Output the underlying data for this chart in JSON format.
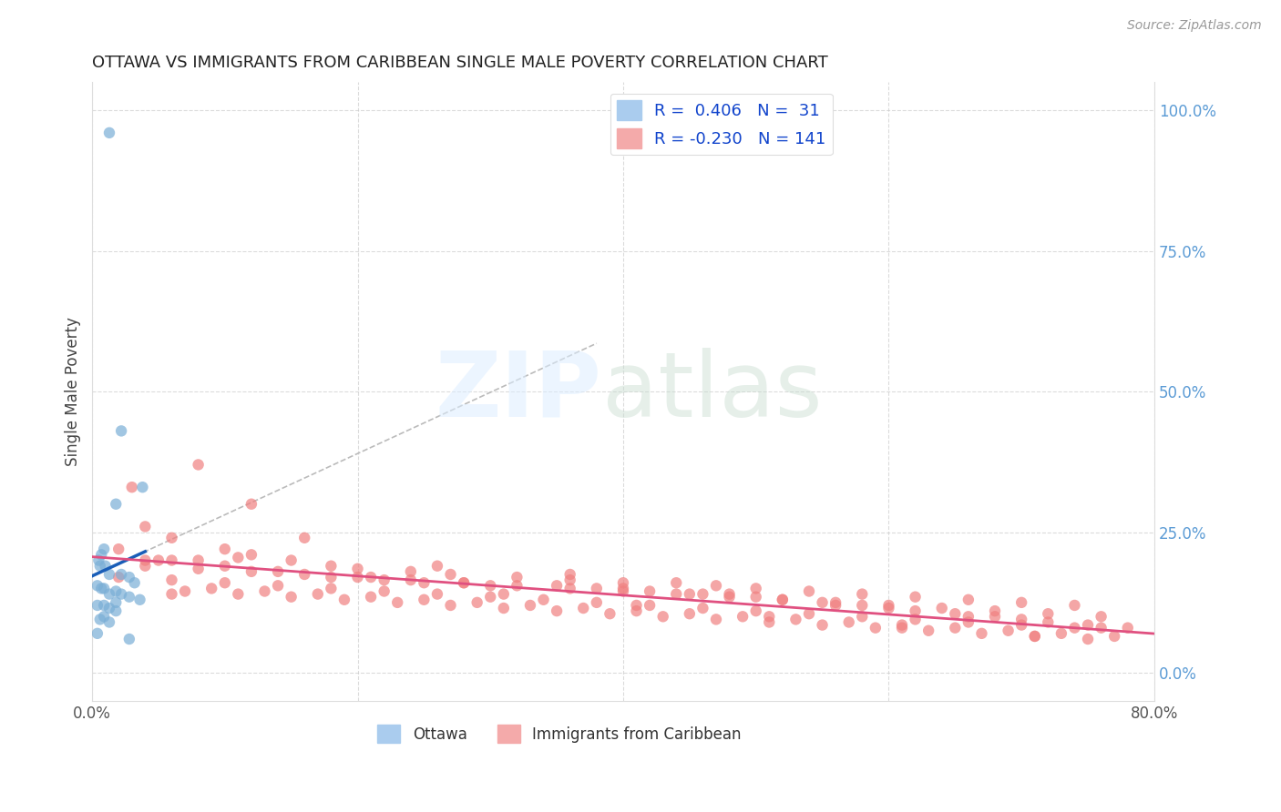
{
  "title": "OTTAWA VS IMMIGRANTS FROM CARIBBEAN SINGLE MALE POVERTY CORRELATION CHART",
  "source": "Source: ZipAtlas.com",
  "ylabel": "Single Male Poverty",
  "xlim": [
    0.0,
    0.8
  ],
  "ylim": [
    -0.05,
    1.05
  ],
  "background_color": "#ffffff",
  "grid_color": "#cccccc",
  "series1_color": "#7aaed6",
  "series2_color": "#f08080",
  "trendline1_color": "#1a5eb8",
  "trendline2_color": "#e05080",
  "dash_color": "#bbbbbb",
  "ottawa_x": [
    0.013,
    0.022,
    0.038,
    0.018,
    0.009,
    0.007,
    0.005,
    0.006,
    0.01,
    0.013,
    0.022,
    0.028,
    0.032,
    0.004,
    0.007,
    0.009,
    0.018,
    0.013,
    0.022,
    0.028,
    0.036,
    0.018,
    0.004,
    0.009,
    0.013,
    0.018,
    0.009,
    0.006,
    0.013,
    0.004,
    0.028
  ],
  "ottawa_y": [
    0.96,
    0.43,
    0.33,
    0.3,
    0.22,
    0.21,
    0.2,
    0.19,
    0.19,
    0.175,
    0.175,
    0.17,
    0.16,
    0.155,
    0.15,
    0.15,
    0.145,
    0.14,
    0.14,
    0.135,
    0.13,
    0.125,
    0.12,
    0.12,
    0.115,
    0.11,
    0.1,
    0.095,
    0.09,
    0.07,
    0.06
  ],
  "carib_x": [
    0.08,
    0.12,
    0.02,
    0.04,
    0.06,
    0.08,
    0.1,
    0.14,
    0.18,
    0.22,
    0.25,
    0.28,
    0.3,
    0.35,
    0.38,
    0.4,
    0.42,
    0.45,
    0.48,
    0.5,
    0.52,
    0.55,
    0.58,
    0.6,
    0.62,
    0.65,
    0.68,
    0.7,
    0.72,
    0.75,
    0.78,
    0.04,
    0.06,
    0.1,
    0.12,
    0.15,
    0.18,
    0.2,
    0.24,
    0.27,
    0.32,
    0.36,
    0.4,
    0.44,
    0.47,
    0.5,
    0.54,
    0.58,
    0.62,
    0.66,
    0.7,
    0.74,
    0.04,
    0.08,
    0.12,
    0.16,
    0.2,
    0.24,
    0.28,
    0.32,
    0.36,
    0.4,
    0.44,
    0.48,
    0.52,
    0.56,
    0.6,
    0.64,
    0.68,
    0.72,
    0.76,
    0.02,
    0.06,
    0.1,
    0.14,
    0.18,
    0.22,
    0.26,
    0.3,
    0.34,
    0.38,
    0.42,
    0.46,
    0.5,
    0.54,
    0.58,
    0.62,
    0.66,
    0.7,
    0.74,
    0.03,
    0.07,
    0.11,
    0.15,
    0.19,
    0.23,
    0.27,
    0.31,
    0.35,
    0.39,
    0.43,
    0.47,
    0.51,
    0.55,
    0.59,
    0.63,
    0.67,
    0.71,
    0.75,
    0.05,
    0.09,
    0.13,
    0.17,
    0.21,
    0.25,
    0.29,
    0.33,
    0.37,
    0.41,
    0.45,
    0.49,
    0.53,
    0.57,
    0.61,
    0.65,
    0.69,
    0.73,
    0.77,
    0.06,
    0.16,
    0.26,
    0.36,
    0.46,
    0.56,
    0.66,
    0.76,
    0.11,
    0.21,
    0.31,
    0.41,
    0.51,
    0.61,
    0.71
  ],
  "carib_y": [
    0.37,
    0.3,
    0.22,
    0.2,
    0.2,
    0.2,
    0.19,
    0.18,
    0.17,
    0.165,
    0.16,
    0.16,
    0.155,
    0.155,
    0.15,
    0.15,
    0.145,
    0.14,
    0.14,
    0.135,
    0.13,
    0.125,
    0.12,
    0.115,
    0.11,
    0.105,
    0.1,
    0.095,
    0.09,
    0.085,
    0.08,
    0.26,
    0.24,
    0.22,
    0.21,
    0.2,
    0.19,
    0.185,
    0.18,
    0.175,
    0.17,
    0.165,
    0.16,
    0.16,
    0.155,
    0.15,
    0.145,
    0.14,
    0.135,
    0.13,
    0.125,
    0.12,
    0.19,
    0.185,
    0.18,
    0.175,
    0.17,
    0.165,
    0.16,
    0.155,
    0.15,
    0.145,
    0.14,
    0.135,
    0.13,
    0.125,
    0.12,
    0.115,
    0.11,
    0.105,
    0.1,
    0.17,
    0.165,
    0.16,
    0.155,
    0.15,
    0.145,
    0.14,
    0.135,
    0.13,
    0.125,
    0.12,
    0.115,
    0.11,
    0.105,
    0.1,
    0.095,
    0.09,
    0.085,
    0.08,
    0.33,
    0.145,
    0.14,
    0.135,
    0.13,
    0.125,
    0.12,
    0.115,
    0.11,
    0.105,
    0.1,
    0.095,
    0.09,
    0.085,
    0.08,
    0.075,
    0.07,
    0.065,
    0.06,
    0.2,
    0.15,
    0.145,
    0.14,
    0.135,
    0.13,
    0.125,
    0.12,
    0.115,
    0.11,
    0.105,
    0.1,
    0.095,
    0.09,
    0.085,
    0.08,
    0.075,
    0.07,
    0.065,
    0.14,
    0.24,
    0.19,
    0.175,
    0.14,
    0.12,
    0.1,
    0.08,
    0.205,
    0.17,
    0.14,
    0.12,
    0.1,
    0.08,
    0.065
  ]
}
